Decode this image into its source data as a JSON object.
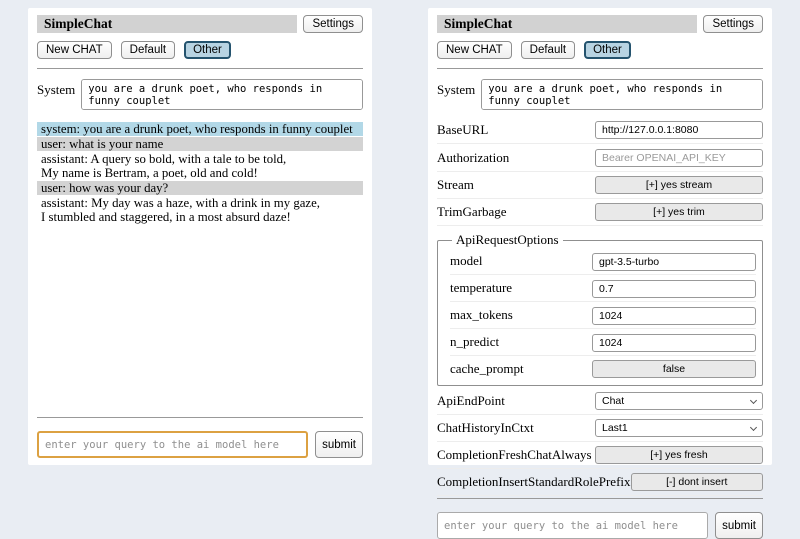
{
  "header": {
    "title": "SimpleChat",
    "settings_button": "Settings",
    "new_chat_button": "New CHAT",
    "default_button": "Default",
    "other_button": "Other",
    "system_label": "System",
    "system_prompt": "you are a drunk poet, who responds in funny couplet"
  },
  "chat": {
    "messages": [
      {
        "role": "system",
        "text": "system: you are a drunk poet, who responds in funny couplet"
      },
      {
        "role": "user",
        "text": "user: what is your name"
      },
      {
        "role": "assistant",
        "text": "assistant: A query so bold, with a tale to be told,\nMy name is Bertram, a poet, old and cold!"
      },
      {
        "role": "user",
        "text": "user: how was your day?"
      },
      {
        "role": "assistant",
        "text": "assistant: My day was a haze, with a drink in my gaze,\nI stumbled and staggered, in a most absurd daze!"
      }
    ]
  },
  "settings": {
    "base_url": {
      "label": "BaseURL",
      "value": "http://127.0.0.1:8080"
    },
    "authorization": {
      "label": "Authorization",
      "placeholder": "Bearer OPENAI_API_KEY"
    },
    "stream": {
      "label": "Stream",
      "button": "[+] yes stream"
    },
    "trim_garbage": {
      "label": "TrimGarbage",
      "button": "[+] yes trim"
    },
    "api_request_options": {
      "legend": "ApiRequestOptions",
      "model": {
        "label": "model",
        "value": "gpt-3.5-turbo"
      },
      "temperature": {
        "label": "temperature",
        "value": "0.7"
      },
      "max_tokens": {
        "label": "max_tokens",
        "value": "1024"
      },
      "n_predict": {
        "label": "n_predict",
        "value": "1024"
      },
      "cache_prompt": {
        "label": "cache_prompt",
        "button": "false"
      }
    },
    "api_endpoint": {
      "label": "ApiEndPoint",
      "value": "Chat"
    },
    "chat_history_in_ctxt": {
      "label": "ChatHistoryInCtxt",
      "value": "Last1"
    },
    "completion_fresh_chat_always": {
      "label": "CompletionFreshChatAlways",
      "button": "[+] yes fresh"
    },
    "completion_insert_standard_role_prefix": {
      "label": "CompletionInsertStandardRolePrefix",
      "button": "[-] dont insert"
    }
  },
  "query": {
    "placeholder": "enter your query to the ai model here",
    "submit_label": "submit"
  },
  "colors": {
    "page_background": "#e9edf3",
    "titlebar_background": "#d2d2d2",
    "active_tab_border": "#24536e",
    "active_tab_background": "#b7d3e2",
    "system_message_background": "#b2d8e7",
    "user_message_background": "#d3d3d3",
    "focused_input_border": "#dca142"
  }
}
